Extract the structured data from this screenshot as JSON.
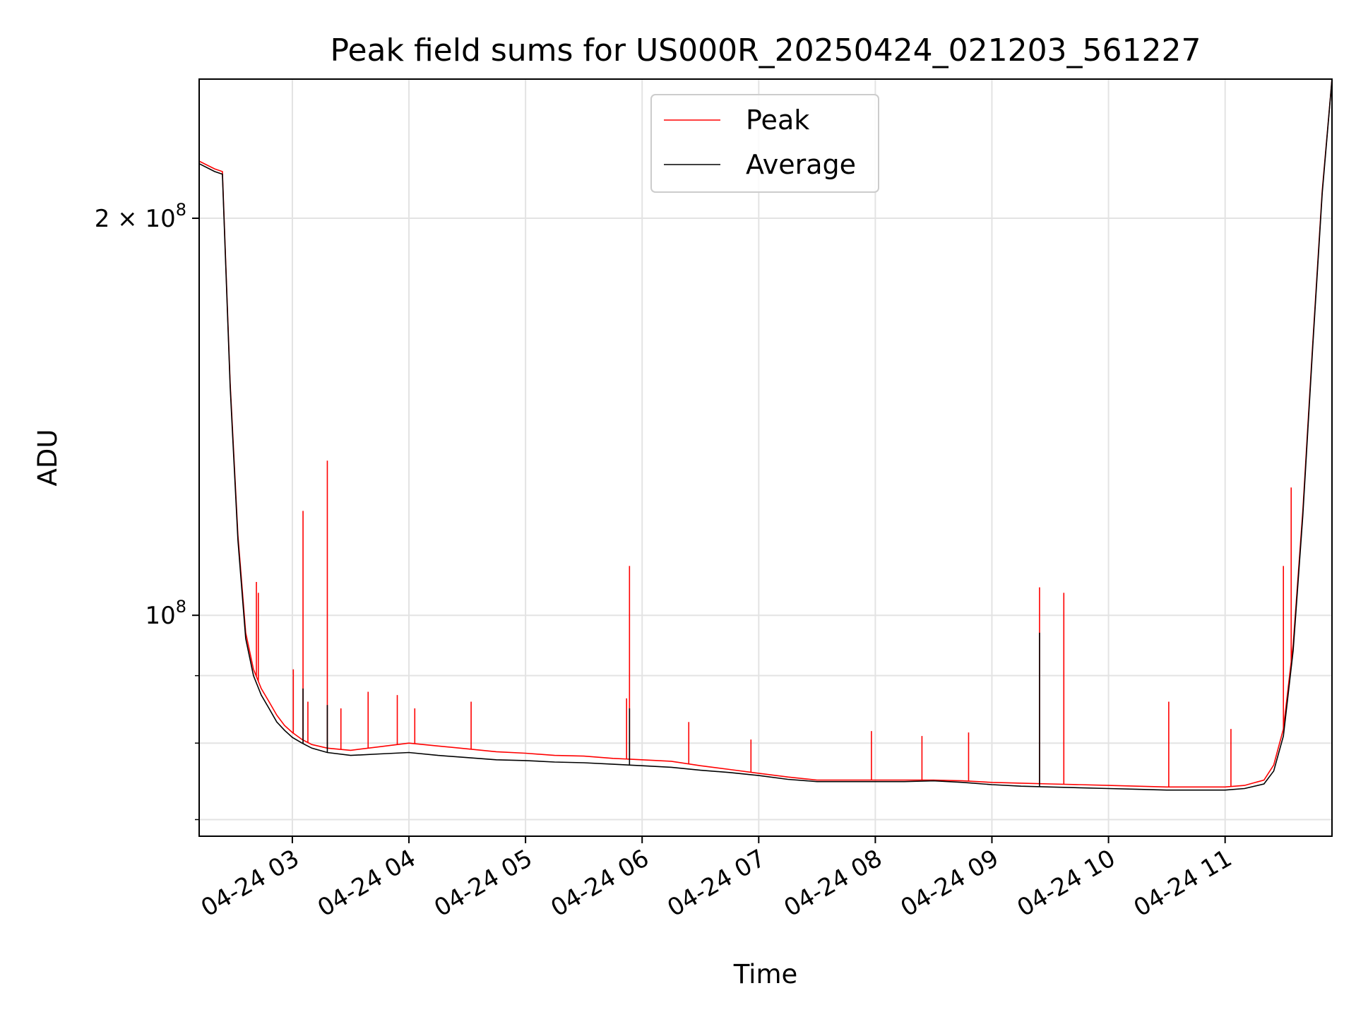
{
  "chart_data": {
    "type": "line",
    "title": "Peak field sums for US000R_20250424_021203_561227",
    "xlabel": "Time",
    "ylabel": "ADU",
    "y_scale": "log",
    "ylim": [
      68000000,
      255000000
    ],
    "xlim": [
      "2025-04-24T02:12:03",
      "2025-04-24T11:55:00"
    ],
    "grid": true,
    "legend_position": "upper center",
    "x_tick_labels": [
      "04-24 03",
      "04-24 04",
      "04-24 05",
      "04-24 06",
      "04-24 07",
      "04-24 08",
      "04-24 09",
      "04-24 10",
      "04-24 11"
    ],
    "x_ticks": [
      "2025-04-24T03:00",
      "2025-04-24T04:00",
      "2025-04-24T05:00",
      "2025-04-24T06:00",
      "2025-04-24T07:00",
      "2025-04-24T08:00",
      "2025-04-24T09:00",
      "2025-04-24T10:00",
      "2025-04-24T11:00"
    ],
    "y_tick_labels": [
      {
        "value": 100000000,
        "base": "10",
        "exp": "8"
      },
      {
        "value": 200000000,
        "base": "2 × 10",
        "exp": "8"
      }
    ],
    "series": [
      {
        "name": "Peak",
        "color": "#ff0000",
        "x": [
          "2025-04-24T02:12",
          "2025-04-24T02:20",
          "2025-04-24T02:24",
          "2025-04-24T02:28",
          "2025-04-24T02:32",
          "2025-04-24T02:36",
          "2025-04-24T02:40",
          "2025-04-24T02:44",
          "2025-04-24T02:48",
          "2025-04-24T02:52",
          "2025-04-24T02:56",
          "2025-04-24T03:00",
          "2025-04-24T03:05",
          "2025-04-24T03:10",
          "2025-04-24T03:18",
          "2025-04-24T03:30",
          "2025-04-24T03:45",
          "2025-04-24T04:00",
          "2025-04-24T04:15",
          "2025-04-24T04:30",
          "2025-04-24T04:45",
          "2025-04-24T05:00",
          "2025-04-24T05:15",
          "2025-04-24T05:30",
          "2025-04-24T05:45",
          "2025-04-24T06:00",
          "2025-04-24T06:15",
          "2025-04-24T06:30",
          "2025-04-24T06:45",
          "2025-04-24T07:00",
          "2025-04-24T07:15",
          "2025-04-24T07:30",
          "2025-04-24T07:45",
          "2025-04-24T08:00",
          "2025-04-24T08:15",
          "2025-04-24T08:30",
          "2025-04-24T08:45",
          "2025-04-24T09:00",
          "2025-04-24T09:15",
          "2025-04-24T09:30",
          "2025-04-24T09:45",
          "2025-04-24T10:00",
          "2025-04-24T10:15",
          "2025-04-24T10:30",
          "2025-04-24T10:45",
          "2025-04-24T11:00",
          "2025-04-24T11:10",
          "2025-04-24T11:20",
          "2025-04-24T11:25",
          "2025-04-24T11:30",
          "2025-04-24T11:35",
          "2025-04-24T11:40",
          "2025-04-24T11:45",
          "2025-04-24T11:50",
          "2025-04-24T11:55"
        ],
        "values": [
          221000000,
          218000000,
          217000000,
          150000000,
          115000000,
          97000000,
          91000000,
          88000000,
          86000000,
          84000000,
          82500000,
          81500000,
          80500000,
          79800000,
          79300000,
          79000000,
          79500000,
          80000000,
          79600000,
          79200000,
          78800000,
          78600000,
          78300000,
          78200000,
          77900000,
          77700000,
          77500000,
          76900000,
          76400000,
          75900000,
          75400000,
          75000000,
          75000000,
          75000000,
          75000000,
          75000000,
          74900000,
          74700000,
          74600000,
          74500000,
          74400000,
          74300000,
          74200000,
          74100000,
          74100000,
          74100000,
          74300000,
          75000000,
          77000000,
          82000000,
          95000000,
          120000000,
          160000000,
          210000000,
          255000000
        ],
        "spikes": [
          {
            "x": "2025-04-24T02:41:30",
            "value": 106000000
          },
          {
            "x": "2025-04-24T02:42:30",
            "value": 104000000
          },
          {
            "x": "2025-04-24T03:00:30",
            "value": 91000000
          },
          {
            "x": "2025-04-24T03:05:30",
            "value": 120000000
          },
          {
            "x": "2025-04-24T03:08:00",
            "value": 86000000
          },
          {
            "x": "2025-04-24T03:18:00",
            "value": 131000000
          },
          {
            "x": "2025-04-24T03:25:00",
            "value": 85000000
          },
          {
            "x": "2025-04-24T03:39:00",
            "value": 87500000
          },
          {
            "x": "2025-04-24T03:54:00",
            "value": 87000000
          },
          {
            "x": "2025-04-24T04:03:00",
            "value": 85000000
          },
          {
            "x": "2025-04-24T04:32:00",
            "value": 86000000
          },
          {
            "x": "2025-04-24T05:52:00",
            "value": 86500000
          },
          {
            "x": "2025-04-24T05:53:30",
            "value": 109000000
          },
          {
            "x": "2025-04-24T06:24:00",
            "value": 83000000
          },
          {
            "x": "2025-04-24T06:56:00",
            "value": 80500000
          },
          {
            "x": "2025-04-24T07:58:00",
            "value": 81700000
          },
          {
            "x": "2025-04-24T08:24:00",
            "value": 81000000
          },
          {
            "x": "2025-04-24T08:48:00",
            "value": 81500000
          },
          {
            "x": "2025-04-24T09:24:30",
            "value": 105000000
          },
          {
            "x": "2025-04-24T09:37:00",
            "value": 104000000
          },
          {
            "x": "2025-04-24T10:31:00",
            "value": 86000000
          },
          {
            "x": "2025-04-24T11:03:00",
            "value": 82000000
          },
          {
            "x": "2025-04-24T11:30:00",
            "value": 109000000
          },
          {
            "x": "2025-04-24T11:34:00",
            "value": 125000000
          }
        ]
      },
      {
        "name": "Average",
        "color": "#000000",
        "x": [
          "2025-04-24T02:12",
          "2025-04-24T02:20",
          "2025-04-24T02:24",
          "2025-04-24T02:28",
          "2025-04-24T02:32",
          "2025-04-24T02:36",
          "2025-04-24T02:40",
          "2025-04-24T02:44",
          "2025-04-24T02:48",
          "2025-04-24T02:52",
          "2025-04-24T02:56",
          "2025-04-24T03:00",
          "2025-04-24T03:05",
          "2025-04-24T03:10",
          "2025-04-24T03:18",
          "2025-04-24T03:30",
          "2025-04-24T03:45",
          "2025-04-24T04:00",
          "2025-04-24T04:15",
          "2025-04-24T04:30",
          "2025-04-24T04:45",
          "2025-04-24T05:00",
          "2025-04-24T05:15",
          "2025-04-24T05:30",
          "2025-04-24T05:45",
          "2025-04-24T06:00",
          "2025-04-24T06:15",
          "2025-04-24T06:30",
          "2025-04-24T06:45",
          "2025-04-24T07:00",
          "2025-04-24T07:15",
          "2025-04-24T07:30",
          "2025-04-24T07:45",
          "2025-04-24T08:00",
          "2025-04-24T08:15",
          "2025-04-24T08:30",
          "2025-04-24T08:45",
          "2025-04-24T09:00",
          "2025-04-24T09:15",
          "2025-04-24T09:30",
          "2025-04-24T09:45",
          "2025-04-24T10:00",
          "2025-04-24T10:15",
          "2025-04-24T10:30",
          "2025-04-24T10:45",
          "2025-04-24T11:00",
          "2025-04-24T11:10",
          "2025-04-24T11:20",
          "2025-04-24T11:25",
          "2025-04-24T11:30",
          "2025-04-24T11:35",
          "2025-04-24T11:40",
          "2025-04-24T11:45",
          "2025-04-24T11:50",
          "2025-04-24T11:55"
        ],
        "values": [
          220000000,
          217000000,
          216000000,
          149000000,
          114000000,
          96000000,
          90000000,
          87000000,
          85000000,
          83000000,
          81800000,
          80800000,
          80000000,
          79300000,
          78700000,
          78300000,
          78500000,
          78700000,
          78300000,
          78000000,
          77700000,
          77600000,
          77400000,
          77300000,
          77100000,
          76900000,
          76700000,
          76300000,
          76000000,
          75600000,
          75100000,
          74800000,
          74800000,
          74800000,
          74800000,
          74900000,
          74700000,
          74400000,
          74200000,
          74100000,
          74000000,
          73900000,
          73800000,
          73700000,
          73700000,
          73700000,
          73900000,
          74500000,
          76200000,
          81000000,
          94000000,
          119000000,
          159000000,
          209000000,
          255000000
        ],
        "spikes": [
          {
            "x": "2025-04-24T09:24:30",
            "value": 97000000
          },
          {
            "x": "2025-04-24T05:53:30",
            "value": 85000000
          },
          {
            "x": "2025-04-24T03:18:00",
            "value": 85500000
          },
          {
            "x": "2025-04-24T03:05:30",
            "value": 88000000
          }
        ]
      }
    ]
  }
}
